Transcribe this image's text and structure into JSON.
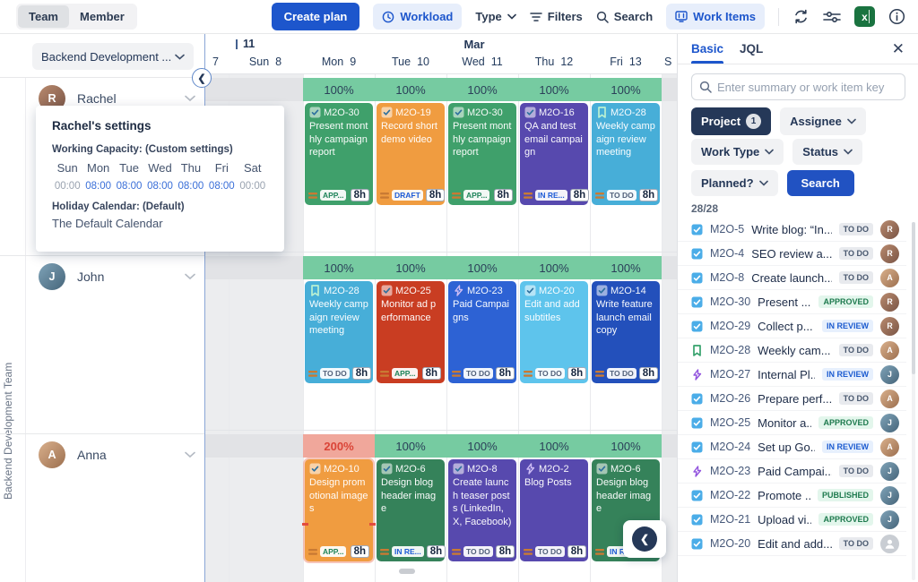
{
  "toolbar": {
    "view_tabs": [
      {
        "label": "Team",
        "active": true
      },
      {
        "label": "Member",
        "active": false
      }
    ],
    "create_plan": "Create plan",
    "workload": "Workload",
    "type": "Type",
    "filters": "Filters",
    "search": "Search",
    "work_items": "Work Items"
  },
  "sidebar": {
    "team_selector": "Backend Development ...",
    "vertical_label": "Backend Development Team",
    "members": [
      {
        "name": "Rachel",
        "initial": "R",
        "avatar": "rachel"
      },
      {
        "name": "John",
        "initial": "J",
        "avatar": "john"
      },
      {
        "name": "Anna",
        "initial": "A",
        "avatar": "anna"
      }
    ]
  },
  "timeline": {
    "week_number": "11",
    "month": "Mar",
    "days": [
      {
        "name": "",
        "num": "7"
      },
      {
        "name": "Sun",
        "num": "8"
      },
      {
        "name": "Mon",
        "num": "9"
      },
      {
        "name": "Tue",
        "num": "10"
      },
      {
        "name": "Wed",
        "num": "11"
      },
      {
        "name": "Thu",
        "num": "12"
      },
      {
        "name": "Fri",
        "num": "13"
      },
      {
        "name": "S",
        "num": ""
      }
    ],
    "rows": [
      {
        "member": "Rachel",
        "capacities": [
          {
            "value": "100%",
            "state": "ok"
          },
          {
            "value": "100%",
            "state": "ok"
          },
          {
            "value": "100%",
            "state": "ok"
          },
          {
            "value": "100%",
            "state": "ok"
          },
          {
            "value": "100%",
            "state": "ok"
          }
        ],
        "cards": [
          {
            "key": "M2O-30",
            "title": "Present monthly campaign report",
            "color": "#3fa06b",
            "type": "task",
            "status": "APP...",
            "status_style": "approved",
            "hours": "8h",
            "overbooked": false
          },
          {
            "key": "M2O-19",
            "title": "Record short demo video",
            "color": "#f09c40",
            "type": "task",
            "status": "DRAFT",
            "status_style": "inreview",
            "hours": "8h",
            "overbooked": false
          },
          {
            "key": "M2O-30",
            "title": "Present monthly campaign report",
            "color": "#3fa06b",
            "type": "task",
            "status": "APP...",
            "status_style": "approved",
            "hours": "8h",
            "overbooked": false
          },
          {
            "key": "M2O-16",
            "title": "QA and test email campaign",
            "color": "#5749ae",
            "type": "task",
            "status": "IN RE...",
            "status_style": "inreview",
            "hours": "8h",
            "overbooked": false
          },
          {
            "key": "M2O-28",
            "title": "Weekly campaign review meeting",
            "color": "#47aed8",
            "type": "story",
            "status": "TO DO",
            "status_style": "todo",
            "hours": "8h",
            "overbooked": false
          }
        ]
      },
      {
        "member": "John",
        "capacities": [
          {
            "value": "100%",
            "state": "ok"
          },
          {
            "value": "100%",
            "state": "ok"
          },
          {
            "value": "100%",
            "state": "ok"
          },
          {
            "value": "100%",
            "state": "ok"
          },
          {
            "value": "100%",
            "state": "ok"
          }
        ],
        "cards": [
          {
            "key": "M2O-28",
            "title": "Weekly campaign review meeting",
            "color": "#47aed8",
            "type": "story",
            "status": "TO DO",
            "status_style": "todo",
            "hours": "8h",
            "overbooked": false
          },
          {
            "key": "M2O-25",
            "title": "Monitor ad performance",
            "color": "#c93d22",
            "type": "task",
            "status": "APP...",
            "status_style": "approved",
            "hours": "8h",
            "overbooked": false
          },
          {
            "key": "M2O-23",
            "title": "Paid Campaigns",
            "color": "#2d62d4",
            "type": "epic",
            "status": "TO DO",
            "status_style": "todo",
            "hours": "8h",
            "overbooked": false
          },
          {
            "key": "M2O-20",
            "title": "Edit and add subtitles",
            "color": "#5ec4ec",
            "type": "task",
            "status": "TO DO",
            "status_style": "todo",
            "hours": "8h",
            "overbooked": false
          },
          {
            "key": "M2O-14",
            "title": "Write feature launch email copy",
            "color": "#2350bb",
            "type": "task",
            "status": "TO DO",
            "status_style": "todo",
            "hours": "8h",
            "overbooked": false
          }
        ]
      },
      {
        "member": "Anna",
        "capacities": [
          {
            "value": "200%",
            "state": "over"
          },
          {
            "value": "100%",
            "state": "ok"
          },
          {
            "value": "100%",
            "state": "ok"
          },
          {
            "value": "100%",
            "state": "ok"
          },
          {
            "value": "100%",
            "state": "ok"
          }
        ],
        "cards": [
          {
            "key": "M2O-10",
            "title": "Design promotional images",
            "color": "#f09c40",
            "type": "task",
            "status": "APP...",
            "status_style": "approved",
            "hours": "8h",
            "overbooked": true
          },
          {
            "key": "M2O-6",
            "title": "Design blog header image",
            "color": "#35825a",
            "type": "task",
            "status": "IN RE...",
            "status_style": "inreview",
            "hours": "8h",
            "overbooked": false
          },
          {
            "key": "M2O-8",
            "title": "Create launch teaser posts (LinkedIn, X, Facebook)",
            "color": "#5749ae",
            "type": "task",
            "status": "TO DO",
            "status_style": "todo",
            "hours": "8h",
            "overbooked": false
          },
          {
            "key": "M2O-2",
            "title": "Blog Posts",
            "color": "#5749ae",
            "type": "epic",
            "status": "TO DO",
            "status_style": "todo",
            "hours": "8h",
            "overbooked": false
          },
          {
            "key": "M2O-6",
            "title": "Design blog header image",
            "color": "#35825a",
            "type": "task",
            "status": "IN RE...",
            "status_style": "inreview",
            "hours": "8h",
            "overbooked": false
          }
        ]
      }
    ]
  },
  "tooltip": {
    "title": "Rachel's settings",
    "capacity_label": "Working Capacity: (Custom settings)",
    "days": [
      "Sun",
      "Mon",
      "Tue",
      "Wed",
      "Thu",
      "Fri",
      "Sat"
    ],
    "hours": [
      {
        "value": "00:00",
        "active": false
      },
      {
        "value": "08:00",
        "active": true
      },
      {
        "value": "08:00",
        "active": true
      },
      {
        "value": "08:00",
        "active": true
      },
      {
        "value": "08:00",
        "active": true
      },
      {
        "value": "08:00",
        "active": true
      },
      {
        "value": "00:00",
        "active": false
      }
    ],
    "holiday_label": "Holiday Calendar: (Default)",
    "holiday_value": "The Default Calendar"
  },
  "panel": {
    "tabs": [
      {
        "label": "Basic",
        "active": true
      },
      {
        "label": "JQL",
        "active": false
      }
    ],
    "search_placeholder": "Enter summary or work item key",
    "filters": {
      "project": "Project",
      "project_count": "1",
      "assignee": "Assignee",
      "work_type": "Work Type",
      "status": "Status",
      "planned": "Planned?",
      "search_button": "Search"
    },
    "count": "28/28",
    "items": [
      {
        "type": "task",
        "key": "M2O-5",
        "summary": "Write blog: “In...",
        "status": "TO DO",
        "status_style": "todo",
        "avatar": "rachel"
      },
      {
        "type": "task",
        "key": "M2O-4",
        "summary": "SEO review a...",
        "status": "TO DO",
        "status_style": "todo",
        "avatar": "rachel"
      },
      {
        "type": "task",
        "key": "M2O-8",
        "summary": "Create launch...",
        "status": "TO DO",
        "status_style": "todo",
        "avatar": "anna"
      },
      {
        "type": "task",
        "key": "M2O-30",
        "summary": "Present ...",
        "status": "APPROVED",
        "status_style": "approved",
        "avatar": "rachel"
      },
      {
        "type": "task",
        "key": "M2O-29",
        "summary": "Collect p...",
        "status": "IN REVIEW",
        "status_style": "inreview",
        "avatar": "rachel"
      },
      {
        "type": "story",
        "key": "M2O-28",
        "summary": "Weekly cam...",
        "status": "TO DO",
        "status_style": "todo",
        "avatar": "anna"
      },
      {
        "type": "epic",
        "key": "M2O-27",
        "summary": "Internal Pl...",
        "status": "IN REVIEW",
        "status_style": "inreview",
        "avatar": "john"
      },
      {
        "type": "task",
        "key": "M2O-26",
        "summary": "Prepare perf...",
        "status": "TO DO",
        "status_style": "todo",
        "avatar": "anna"
      },
      {
        "type": "task",
        "key": "M2O-25",
        "summary": "Monitor a...",
        "status": "APPROVED",
        "status_style": "approved",
        "avatar": "john"
      },
      {
        "type": "task",
        "key": "M2O-24",
        "summary": "Set up Go...",
        "status": "IN REVIEW",
        "status_style": "inreview",
        "avatar": "anna"
      },
      {
        "type": "epic",
        "key": "M2O-23",
        "summary": "Paid Campai...",
        "status": "TO DO",
        "status_style": "todo",
        "avatar": "john"
      },
      {
        "type": "task",
        "key": "M2O-22",
        "summary": "Promote ...",
        "status": "PUBLISHED",
        "status_style": "published",
        "avatar": "john"
      },
      {
        "type": "task",
        "key": "M2O-21",
        "summary": "Upload vi...",
        "status": "APPROVED",
        "status_style": "approved",
        "avatar": "john"
      },
      {
        "type": "task",
        "key": "M2O-20",
        "summary": "Edit and add...",
        "status": "TO DO",
        "status_style": "todo",
        "avatar": "none"
      }
    ]
  },
  "colors": {
    "accent": "#1d56cc",
    "capacity_ok": "#76cba1",
    "capacity_over_bg": "#f0a79b",
    "capacity_over_text": "#da4437"
  }
}
